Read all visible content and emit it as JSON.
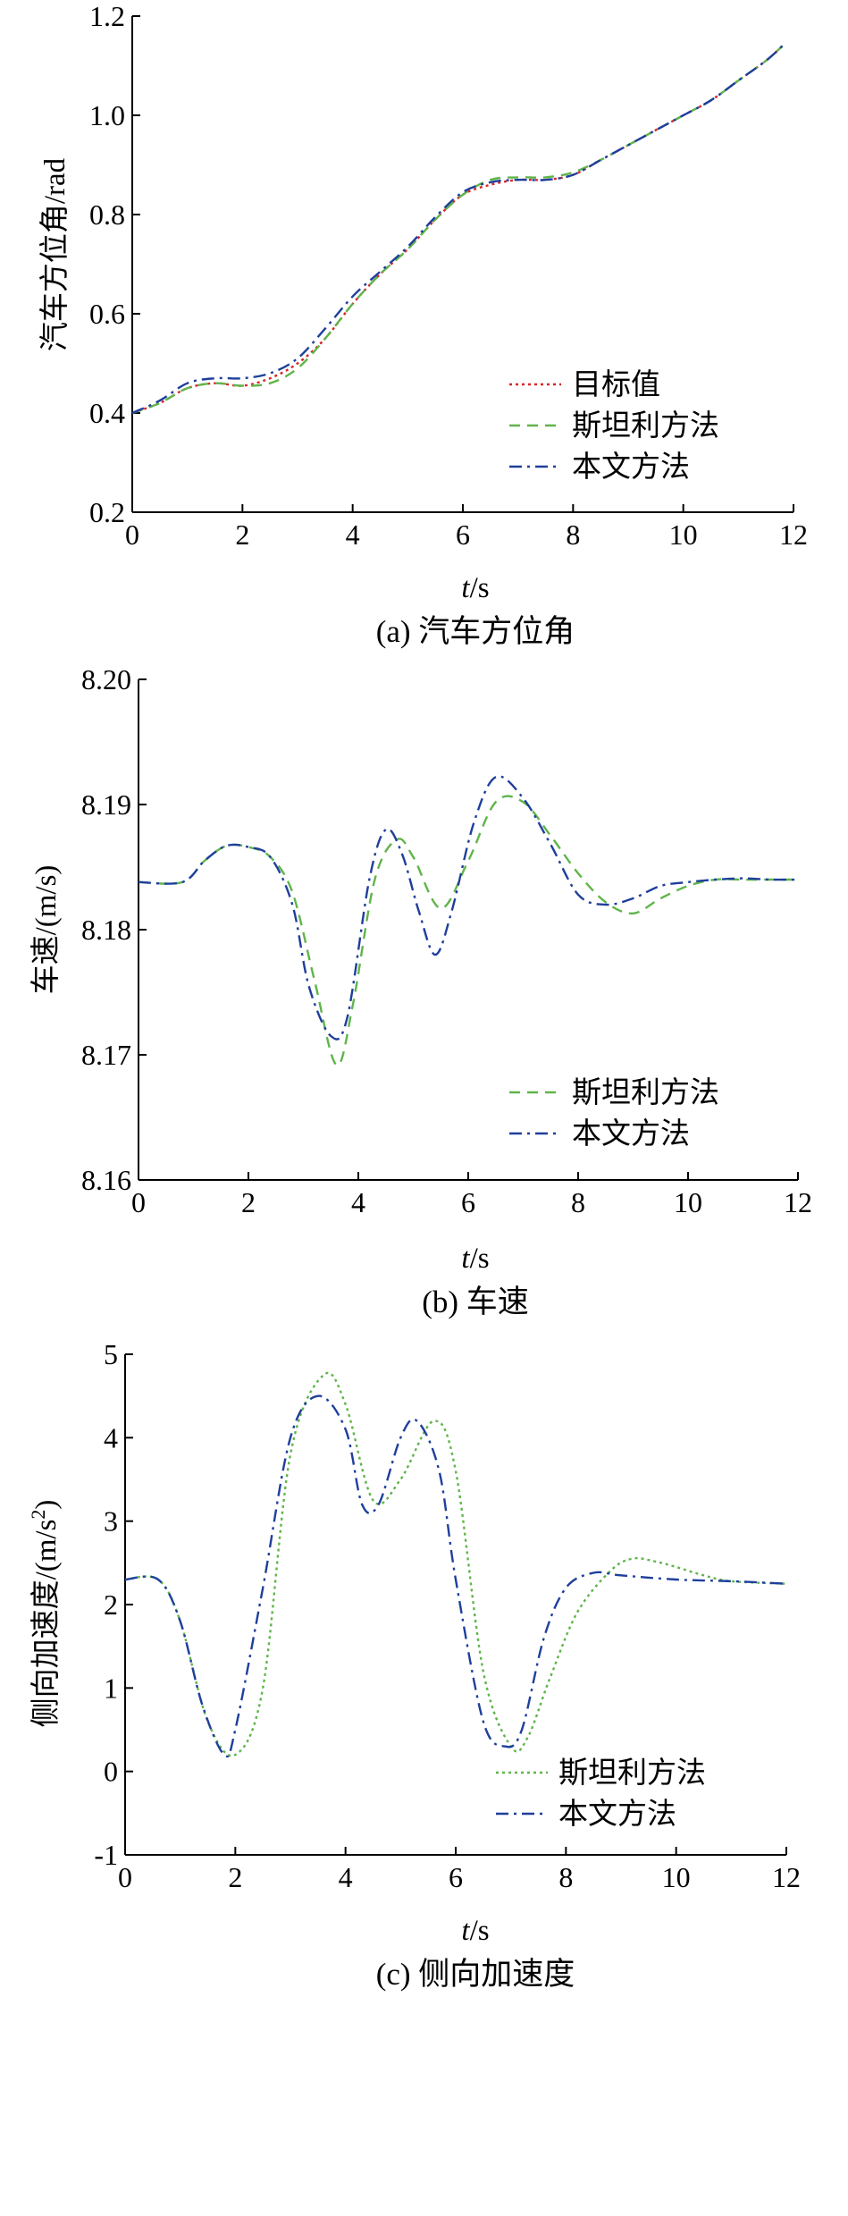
{
  "chart_data": [
    {
      "type": "line",
      "caption": "(a) 汽车方位角",
      "ylabel": "汽车方位角/rad",
      "xlabel_italic": "t",
      "xlabel_rest": "/s",
      "xlim": [
        0,
        12
      ],
      "ylim": [
        0.2,
        1.2
      ],
      "xticks": [
        "0",
        "2",
        "4",
        "6",
        "8",
        "10",
        "12"
      ],
      "yticks": [
        "0.2",
        "0.4",
        "0.6",
        "0.8",
        "1.0",
        "1.2"
      ],
      "legend_position": "bottom-right",
      "series": [
        {
          "name": "目标值",
          "color": "#d62728",
          "dash": "dotted",
          "x": [
            0,
            0.5,
            1,
            1.5,
            2,
            2.5,
            3,
            3.5,
            4,
            4.5,
            5,
            5.5,
            6,
            6.5,
            7,
            7.5,
            8,
            8.5,
            9,
            9.5,
            10,
            10.5,
            11,
            11.5,
            11.8
          ],
          "y": [
            0.4,
            0.42,
            0.45,
            0.46,
            0.455,
            0.47,
            0.5,
            0.55,
            0.62,
            0.68,
            0.73,
            0.79,
            0.84,
            0.86,
            0.87,
            0.87,
            0.88,
            0.91,
            0.94,
            0.97,
            1.0,
            1.03,
            1.07,
            1.11,
            1.14
          ]
        },
        {
          "name": "斯坦利方法",
          "color": "#5fb54a",
          "dash": "dashed",
          "x": [
            0,
            0.5,
            1,
            1.5,
            2,
            2.5,
            3,
            3.5,
            4,
            4.5,
            5,
            5.5,
            6,
            6.5,
            7,
            7.5,
            8,
            8.5,
            9,
            9.5,
            10,
            10.5,
            11,
            11.5,
            11.8
          ],
          "y": [
            0.4,
            0.42,
            0.45,
            0.46,
            0.455,
            0.46,
            0.49,
            0.55,
            0.62,
            0.68,
            0.73,
            0.79,
            0.84,
            0.87,
            0.875,
            0.875,
            0.885,
            0.91,
            0.94,
            0.97,
            1.0,
            1.03,
            1.07,
            1.11,
            1.14
          ]
        },
        {
          "name": "本文方法",
          "color": "#1f3f9c",
          "dash": "dashdot",
          "x": [
            0,
            0.5,
            1,
            1.5,
            2,
            2.5,
            3,
            3.5,
            4,
            4.5,
            5,
            5.5,
            6,
            6.5,
            7,
            7.5,
            8,
            8.5,
            9,
            9.5,
            10,
            10.5,
            11,
            11.5,
            11.8
          ],
          "y": [
            0.4,
            0.425,
            0.46,
            0.47,
            0.47,
            0.48,
            0.51,
            0.57,
            0.635,
            0.685,
            0.735,
            0.795,
            0.845,
            0.865,
            0.87,
            0.87,
            0.88,
            0.91,
            0.94,
            0.97,
            1.0,
            1.03,
            1.07,
            1.11,
            1.14
          ]
        }
      ]
    },
    {
      "type": "line",
      "caption": "(b) 车速",
      "ylabel": "车速/(m/s)",
      "xlabel_italic": "t",
      "xlabel_rest": "/s",
      "xlim": [
        0,
        12
      ],
      "ylim": [
        8.16,
        8.2
      ],
      "xticks": [
        "0",
        "2",
        "4",
        "6",
        "8",
        "10",
        "12"
      ],
      "yticks": [
        "8.16",
        "8.17",
        "8.18",
        "8.19",
        "8.20"
      ],
      "legend_position": "bottom-right",
      "series": [
        {
          "name": "斯坦利方法",
          "color": "#5fb54a",
          "dash": "dashed",
          "x": [
            0,
            0.8,
            1.2,
            1.6,
            2.0,
            2.4,
            2.8,
            3.2,
            3.6,
            3.9,
            4.3,
            4.7,
            5.0,
            5.5,
            6.0,
            6.5,
            7.0,
            7.5,
            8.0,
            8.5,
            9.0,
            9.5,
            10.0,
            10.5,
            11.0,
            11.5,
            12.0
          ],
          "y": [
            8.1838,
            8.1838,
            8.1855,
            8.1867,
            8.1866,
            8.1858,
            8.183,
            8.176,
            8.1692,
            8.174,
            8.184,
            8.1872,
            8.1858,
            8.1817,
            8.1855,
            8.1902,
            8.1902,
            8.1875,
            8.1845,
            8.1822,
            8.1813,
            8.1825,
            8.1835,
            8.184,
            8.184,
            8.184,
            8.184
          ]
        },
        {
          "name": "本文方法",
          "color": "#1f3f9c",
          "dash": "dashdot",
          "x": [
            0,
            0.8,
            1.2,
            1.6,
            2.0,
            2.4,
            2.8,
            3.1,
            3.5,
            3.8,
            4.2,
            4.5,
            4.8,
            5.1,
            5.4,
            5.7,
            6.1,
            6.5,
            7.0,
            7.5,
            8.0,
            8.5,
            9.0,
            9.5,
            10.0,
            10.5,
            11.0,
            11.5,
            12.0
          ],
          "y": [
            8.1838,
            8.1838,
            8.1855,
            8.1867,
            8.1866,
            8.1858,
            8.182,
            8.1755,
            8.1715,
            8.173,
            8.184,
            8.188,
            8.186,
            8.1815,
            8.178,
            8.1815,
            8.1885,
            8.1922,
            8.1905,
            8.1868,
            8.1828,
            8.182,
            8.1825,
            8.1835,
            8.1838,
            8.184,
            8.1841,
            8.184,
            8.184
          ]
        }
      ]
    },
    {
      "type": "line",
      "caption": "(c) 侧向加速度",
      "ylabel_main": "侧向加速度/(m/s",
      "ylabel_sup": "2",
      "ylabel_end": ")",
      "xlabel_italic": "t",
      "xlabel_rest": "/s",
      "xlim": [
        0,
        12
      ],
      "ylim": [
        -1,
        5
      ],
      "xticks": [
        "0",
        "2",
        "4",
        "6",
        "8",
        "10",
        "12"
      ],
      "yticks": [
        "-1",
        "0",
        "1",
        "2",
        "3",
        "4",
        "5"
      ],
      "legend_position": "bottom-right",
      "series": [
        {
          "name": "斯坦利方法",
          "color": "#5fb54a",
          "dash": "dotted",
          "x": [
            0,
            0.6,
            1.0,
            1.5,
            2.0,
            2.5,
            3.0,
            3.6,
            4.0,
            4.5,
            5.0,
            5.6,
            6.0,
            6.5,
            7.0,
            7.3,
            7.7,
            8.2,
            8.8,
            9.2,
            9.6,
            10.0,
            10.5,
            11.0,
            12.0
          ],
          "y": [
            2.3,
            2.3,
            1.8,
            0.6,
            0.2,
            1.0,
            3.8,
            4.75,
            4.4,
            3.25,
            3.5,
            4.2,
            3.6,
            1.2,
            0.3,
            0.4,
            1.1,
            1.9,
            2.4,
            2.55,
            2.52,
            2.45,
            2.35,
            2.28,
            2.25
          ]
        },
        {
          "name": "本文方法",
          "color": "#1f3f9c",
          "dash": "dashdot",
          "x": [
            0,
            0.6,
            1.0,
            1.4,
            1.8,
            2.0,
            2.5,
            3.0,
            3.5,
            4.0,
            4.3,
            4.6,
            5.0,
            5.3,
            5.7,
            6.0,
            6.5,
            6.9,
            7.2,
            7.6,
            8.0,
            8.5,
            9.0,
            10.0,
            11.0,
            12.0
          ],
          "y": [
            2.3,
            2.3,
            1.8,
            0.8,
            0.2,
            0.5,
            2.2,
            4.0,
            4.5,
            4.1,
            3.2,
            3.2,
            4.0,
            4.2,
            3.6,
            2.3,
            0.6,
            0.3,
            0.5,
            1.6,
            2.2,
            2.38,
            2.35,
            2.3,
            2.28,
            2.25
          ]
        }
      ]
    }
  ]
}
